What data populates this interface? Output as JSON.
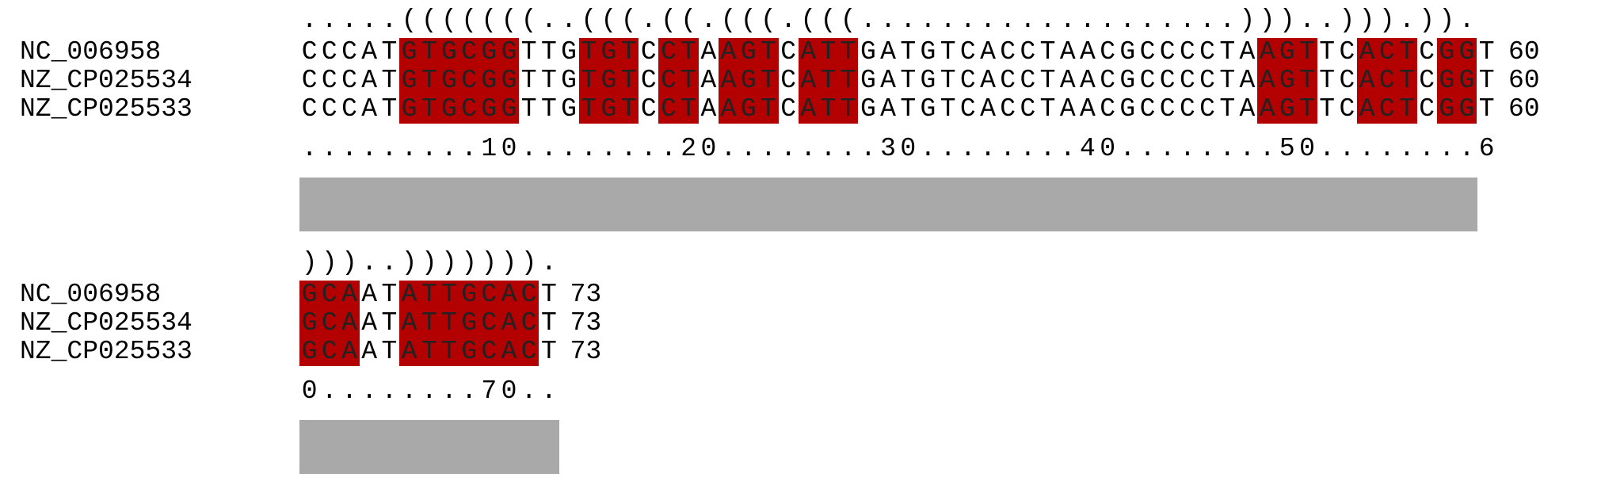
{
  "blocks": [
    {
      "structure": ".....(((((((..(((.((.(((.(((...................)))..))).)).",
      "ruler": ".........10........20........30........40........50........6",
      "rows": [
        {
          "name": "NC_006958",
          "seq": "CCCATGTGCGGTTGTGTCCTAAGTCATTGATGTCACCTAACGCCCCTAAGTTCACTCGGT",
          "end": "60"
        },
        {
          "name": "NZ_CP025534",
          "seq": "CCCATGTGCGGTTGTGTCCTAAGTCATTGATGTCACCTAACGCCCCTAAGTTCACTCGGT",
          "end": "60"
        },
        {
          "name": "NZ_CP025533",
          "seq": "CCCATGTGCGGTTGTGTCCTAAGTCATTGATGTCACCTAACGCCCCTAAGTTCACTCGGT",
          "end": "60"
        }
      ],
      "highlight_ranges": [
        [
          5,
          11
        ],
        [
          14,
          17
        ],
        [
          18,
          20
        ],
        [
          21,
          24
        ],
        [
          25,
          28
        ],
        [
          48,
          51
        ],
        [
          53,
          56
        ],
        [
          57,
          59
        ]
      ]
    },
    {
      "structure": ")))..))))))).",
      "ruler": "0........70..",
      "rows": [
        {
          "name": "NC_006958",
          "seq": "GCAATATTGCACT",
          "end": "73"
        },
        {
          "name": "NZ_CP025534",
          "seq": "GCAATATTGCACT",
          "end": "73"
        },
        {
          "name": "NZ_CP025533",
          "seq": "GCAATATTGCACT",
          "end": "73"
        }
      ],
      "highlight_ranges": [
        [
          0,
          3
        ],
        [
          5,
          12
        ]
      ]
    }
  ],
  "colors": {
    "pair_highlight": "#b30000",
    "conservation_bar": "#a9a9a9"
  }
}
